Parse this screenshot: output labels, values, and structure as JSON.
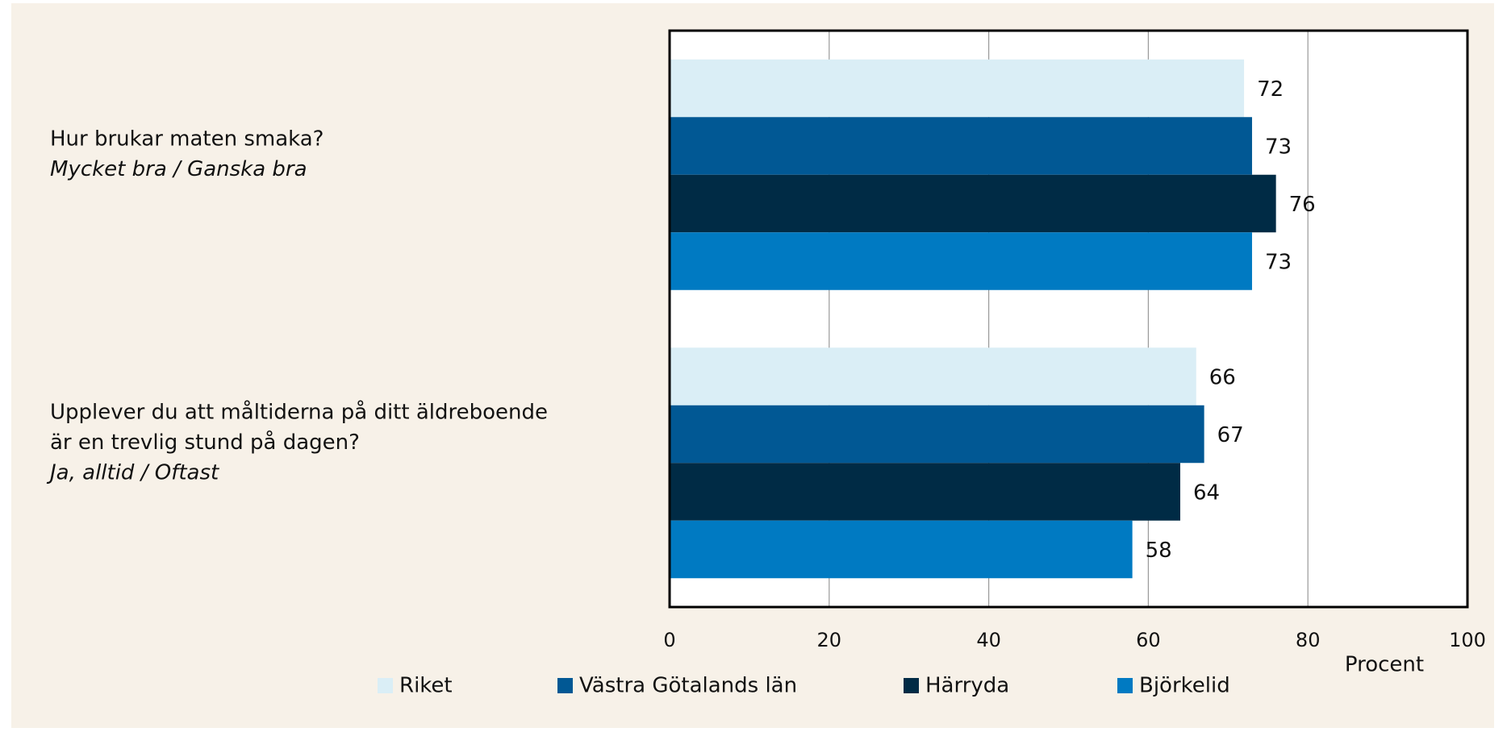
{
  "chart_data": {
    "type": "barh",
    "categories": [
      [
        "Hur brukar maten smaka?"
      ],
      [
        "Upplever du att måltiderna på ditt äldreboende",
        "är en trevlig stund på dagen?"
      ]
    ],
    "category_notes": [
      "Mycket bra / Ganska bra",
      "Ja, alltid / Oftast"
    ],
    "series": [
      {
        "name": "Riket",
        "color": "#daeef6",
        "values": [
          72,
          66
        ]
      },
      {
        "name": "Västra Götalands län",
        "color": "#015894",
        "values": [
          73,
          67
        ]
      },
      {
        "name": "Härryda",
        "color": "#002b45",
        "values": [
          76,
          64
        ]
      },
      {
        "name": "Björkelid",
        "color": "#007ac2",
        "values": [
          73,
          58
        ]
      }
    ],
    "xlim": [
      0,
      100
    ],
    "xticks": [
      0,
      20,
      40,
      60,
      80,
      100
    ],
    "xlabel": "Procent",
    "grid": true,
    "legend": "bottom"
  }
}
